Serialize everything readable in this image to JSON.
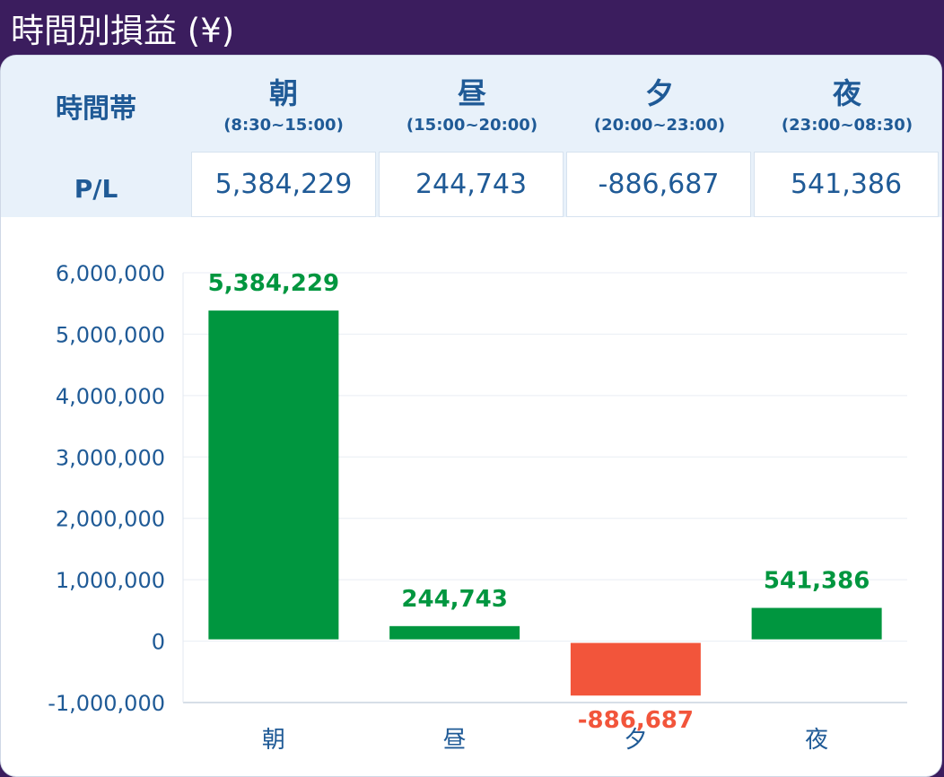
{
  "title": "時間別損益 (¥)",
  "table": {
    "header_label": "時間帯",
    "row_label": "P/L",
    "columns": [
      {
        "name": "朝",
        "range": "(8:30~15:00)",
        "value": "5,384,229"
      },
      {
        "name": "昼",
        "range": "(15:00~20:00)",
        "value": "244,743"
      },
      {
        "name": "夕",
        "range": "(20:00~23:00)",
        "value": "-886,687"
      },
      {
        "name": "夜",
        "range": "(23:00~08:30)",
        "value": "541,386"
      }
    ]
  },
  "colors": {
    "positive": "#00963f",
    "negative": "#f2553b",
    "header_bg": "#3b1d5e",
    "text": "#1f5a96"
  },
  "chart_data": {
    "type": "bar",
    "categories": [
      "朝",
      "昼",
      "夕",
      "夜"
    ],
    "values": [
      5384229,
      244743,
      -886687,
      541386
    ],
    "data_labels": [
      "5,384,229",
      "244,743",
      "-886,687",
      "541,386"
    ],
    "yticks": [
      -1000000,
      0,
      1000000,
      2000000,
      3000000,
      4000000,
      5000000,
      6000000
    ],
    "ytick_labels": [
      "-1,000,000",
      "0",
      "1,000,000",
      "2,000,000",
      "3,000,000",
      "4,000,000",
      "5,000,000",
      "6,000,000"
    ],
    "ylim": [
      -1000000,
      6000000
    ],
    "grid": true
  }
}
